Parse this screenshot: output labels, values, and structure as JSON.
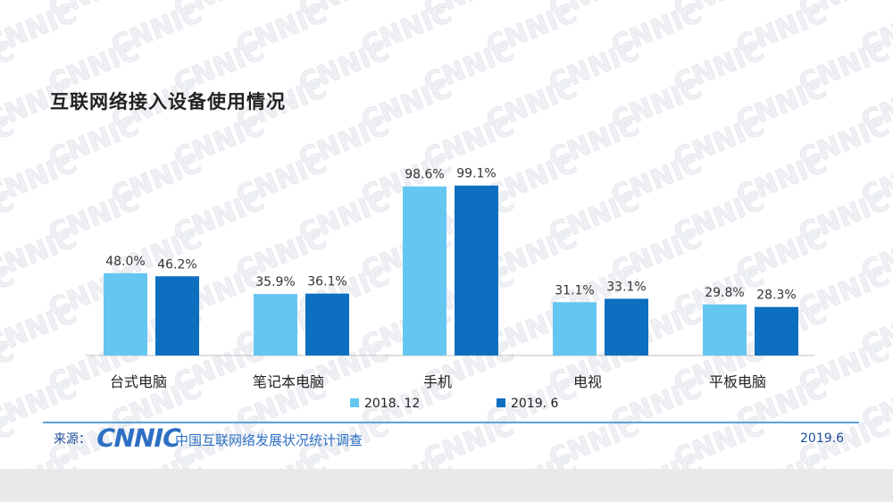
{
  "chart_data": {
    "type": "bar",
    "title": "互联网络接入设备使用情况",
    "categories": [
      "台式电脑",
      "笔记本电脑",
      "手机",
      "电视",
      "平板电脑"
    ],
    "series": [
      {
        "name": "2018. 12",
        "values": [
          48.0,
          35.9,
          98.6,
          31.1,
          29.8
        ],
        "labels": [
          "48.0%",
          "35.9%",
          "98.6%",
          "31.1%",
          "29.8%"
        ],
        "color": "#66c6f2"
      },
      {
        "name": "2019. 6",
        "values": [
          46.2,
          36.1,
          99.1,
          33.1,
          28.3
        ],
        "labels": [
          "46.2%",
          "36.1%",
          "99.1%",
          "33.1%",
          "28.3%"
        ],
        "color": "#0c6fc0"
      }
    ],
    "ylim": [
      0,
      100
    ],
    "grid": false,
    "legend_position": "bottom"
  },
  "footer": {
    "source_label": "来源：",
    "logo_text": "CNNIC",
    "org_name": "中国互联网络发展状况统计调查",
    "date": "2019.6",
    "line_color": "#5aa0d8"
  },
  "watermark_text": "CNNIC"
}
